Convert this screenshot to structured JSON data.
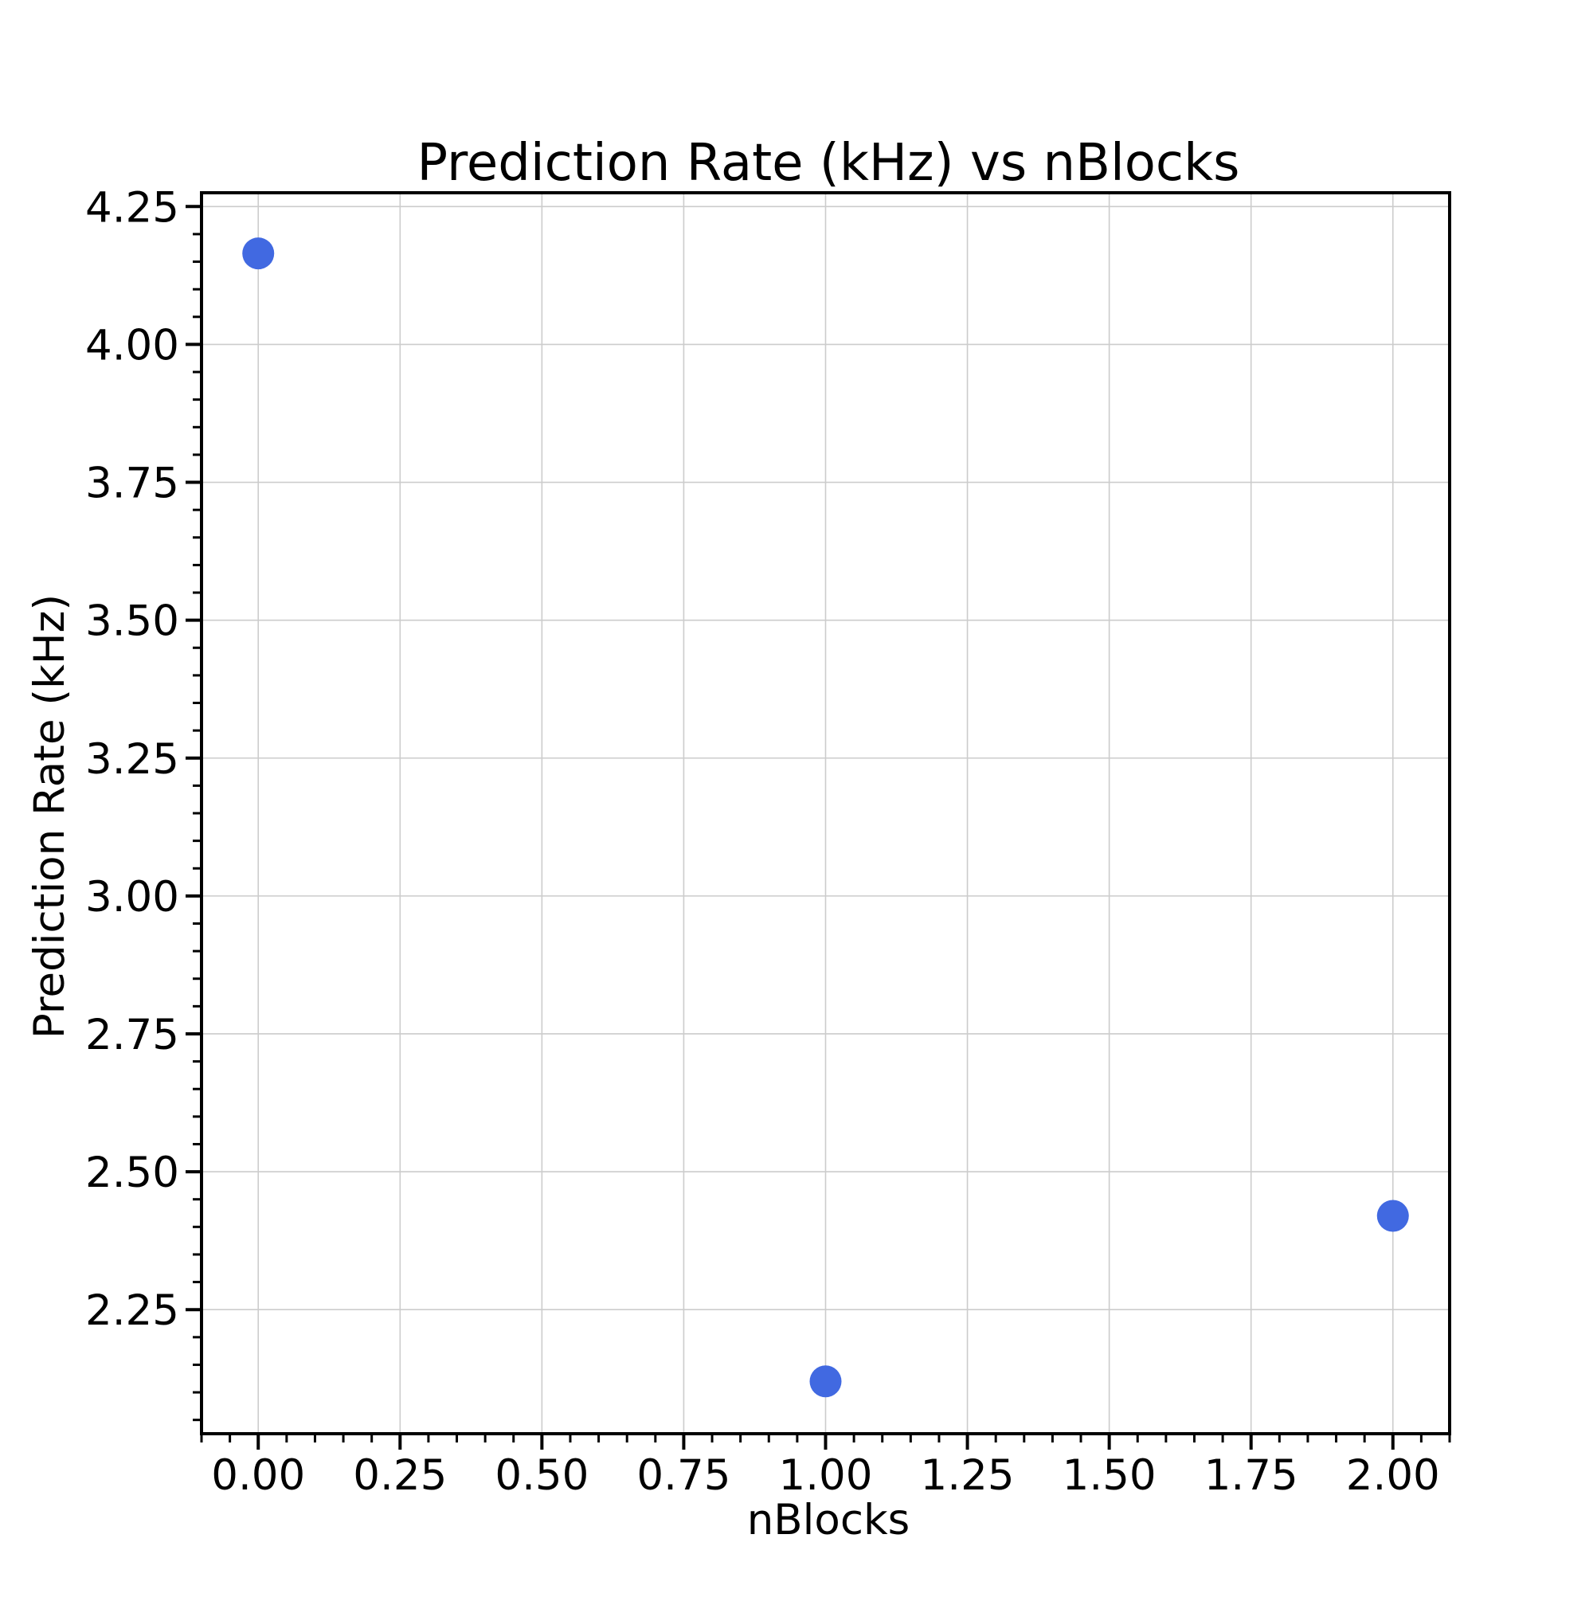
{
  "chart_data": {
    "type": "scatter",
    "title": "Prediction Rate (kHz) vs nBlocks",
    "xlabel": "nBlocks",
    "ylabel": "Prediction Rate (kHz)",
    "xlim": [
      -0.1,
      2.1
    ],
    "ylim": [
      2.025,
      4.275
    ],
    "x_ticks": [
      0.0,
      0.25,
      0.5,
      0.75,
      1.0,
      1.25,
      1.5,
      1.75,
      2.0
    ],
    "x_tick_labels": [
      "0.00",
      "0.25",
      "0.50",
      "0.75",
      "1.00",
      "1.25",
      "1.50",
      "1.75",
      "2.00"
    ],
    "y_ticks": [
      2.25,
      2.5,
      2.75,
      3.0,
      3.25,
      3.5,
      3.75,
      4.0,
      4.25
    ],
    "y_tick_labels": [
      "2.25",
      "2.50",
      "2.75",
      "3.00",
      "3.25",
      "3.50",
      "3.75",
      "4.00",
      "4.25"
    ],
    "x_minor_step": 0.05,
    "y_minor_step": 0.05,
    "grid": true,
    "legend": "none",
    "marker_color": "#4169E1",
    "grid_color": "#cccccc",
    "points": [
      {
        "x": 0,
        "y": 4.165
      },
      {
        "x": 1,
        "y": 2.12
      },
      {
        "x": 2,
        "y": 2.42
      }
    ]
  }
}
